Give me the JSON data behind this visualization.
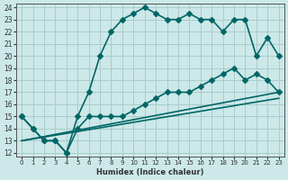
{
  "xlabel": "Humidex (Indice chaleur)",
  "bg_color": "#cce8e8",
  "grid_color": "#aacccc",
  "line_color": "#006666",
  "xlim": [
    0,
    23
  ],
  "ylim": [
    12,
    24
  ],
  "yticks": [
    12,
    13,
    14,
    15,
    16,
    17,
    18,
    19,
    20,
    21,
    22,
    23,
    24
  ],
  "xticks": [
    0,
    1,
    2,
    3,
    4,
    5,
    6,
    7,
    8,
    9,
    10,
    11,
    12,
    13,
    14,
    15,
    16,
    17,
    18,
    19,
    20,
    21,
    22,
    23
  ],
  "line1_x": [
    0,
    1,
    2,
    3,
    4,
    5,
    6,
    7,
    8,
    9,
    10,
    11,
    12,
    13,
    14,
    15,
    16,
    17,
    18,
    19,
    20,
    21,
    22,
    23
  ],
  "line1_y": [
    15,
    14,
    13,
    13,
    12,
    15,
    17,
    20,
    22,
    23,
    23.5,
    24,
    23.5,
    23,
    23,
    23.5,
    23,
    23,
    22,
    23,
    23,
    20,
    21.5,
    20
  ],
  "line2_x": [
    0,
    1,
    2,
    3,
    4,
    5,
    6,
    7,
    8,
    9,
    10,
    11,
    12,
    13,
    14,
    15,
    16,
    17,
    18,
    19,
    20,
    21,
    22,
    23
  ],
  "line2_y": [
    15,
    14,
    13,
    13,
    12,
    14,
    15,
    15,
    15,
    15,
    15.5,
    16,
    16.5,
    17,
    17,
    17,
    17.5,
    18,
    18.5,
    19,
    18,
    18.5,
    18,
    17
  ],
  "line3_x": [
    0,
    23
  ],
  "line3_y": [
    13,
    17
  ],
  "line4_x": [
    0,
    23
  ],
  "line4_y": [
    13,
    16.5
  ],
  "marker_size": 3,
  "linewidth": 1.2
}
